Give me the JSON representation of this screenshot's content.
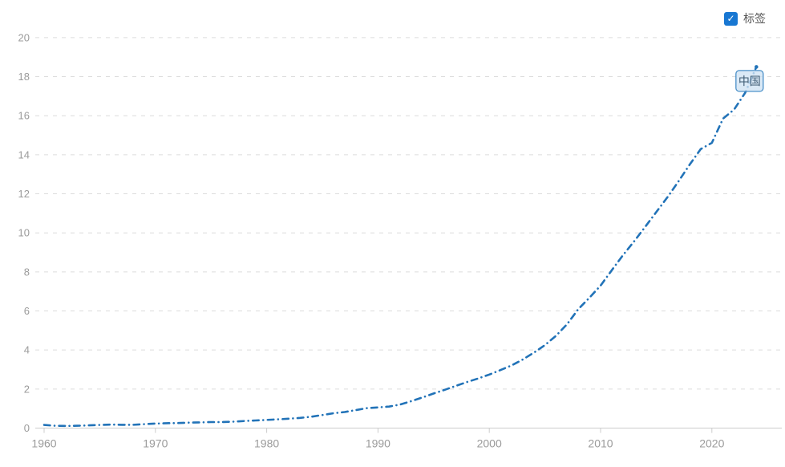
{
  "controls": {
    "labels_checkbox": {
      "label": "标签",
      "checked": true,
      "icon": "check"
    }
  },
  "chart_data": {
    "type": "line",
    "title": "",
    "xlabel": "",
    "ylabel": "",
    "xlim": [
      1958.5,
      2026
    ],
    "ylim": [
      0,
      20
    ],
    "x_ticks": [
      1960,
      1970,
      1980,
      1990,
      2000,
      2010,
      2020
    ],
    "y_ticks": [
      0,
      2,
      4,
      6,
      8,
      10,
      12,
      14,
      16,
      18,
      20
    ],
    "grid": "horizontal-dashed",
    "legend_position": "none",
    "series": [
      {
        "name": "中国",
        "end_label": "中国",
        "line_style": "dash-dot",
        "color": "#2273b8",
        "x": [
          1960,
          1961,
          1962,
          1963,
          1964,
          1965,
          1966,
          1967,
          1968,
          1969,
          1970,
          1971,
          1972,
          1973,
          1974,
          1975,
          1976,
          1977,
          1978,
          1979,
          1980,
          1981,
          1982,
          1983,
          1984,
          1985,
          1986,
          1987,
          1988,
          1989,
          1990,
          1991,
          1992,
          1993,
          1994,
          1995,
          1996,
          1997,
          1998,
          1999,
          2000,
          2001,
          2002,
          2003,
          2004,
          2005,
          2006,
          2007,
          2008,
          2009,
          2010,
          2011,
          2012,
          2013,
          2014,
          2015,
          2016,
          2017,
          2018,
          2019,
          2020,
          2021,
          2022,
          2023,
          2024
        ],
        "values": [
          0.16,
          0.12,
          0.11,
          0.12,
          0.14,
          0.16,
          0.18,
          0.17,
          0.17,
          0.2,
          0.23,
          0.25,
          0.26,
          0.28,
          0.29,
          0.31,
          0.31,
          0.33,
          0.36,
          0.39,
          0.42,
          0.45,
          0.48,
          0.52,
          0.58,
          0.67,
          0.76,
          0.82,
          0.92,
          1.02,
          1.06,
          1.1,
          1.21,
          1.38,
          1.57,
          1.77,
          1.96,
          2.16,
          2.36,
          2.54,
          2.74,
          2.97,
          3.21,
          3.51,
          3.86,
          4.25,
          4.73,
          5.33,
          6.09,
          6.68,
          7.3,
          8.08,
          8.85,
          9.55,
          10.3,
          11.06,
          11.82,
          12.64,
          13.49,
          14.29,
          14.61,
          15.85,
          16.32,
          17.18,
          18.5
        ]
      }
    ]
  },
  "colors": {
    "axis": "#cccccc",
    "grid": "#dcdcdc",
    "tick_label": "#9b9b9b",
    "line": "#2273b8",
    "end_label_fill": "#cfe3f4",
    "end_label_border": "#4a90c8",
    "end_label_text": "#3d5a73",
    "checkbox": "#1877d2",
    "checkbox_label": "#555555"
  }
}
